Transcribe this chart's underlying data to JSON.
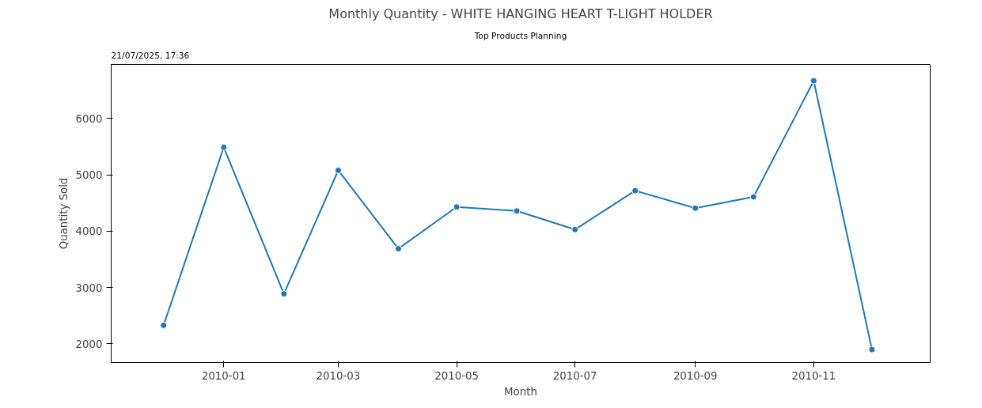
{
  "chart_data": {
    "type": "line",
    "title": "Monthly Quantity - WHITE HANGING HEART T-LIGHT HOLDER",
    "xlabel": "Month",
    "ylabel": "Quantity Sold",
    "annotations": [
      "21/07/2025, 17:36",
      "Top Products Planning"
    ],
    "x": [
      "2009-12",
      "2010-01",
      "2010-02",
      "2010-03",
      "2010-04",
      "2010-05",
      "2010-06",
      "2010-07",
      "2010-08",
      "2010-09",
      "2010-10",
      "2010-11",
      "2010-12"
    ],
    "series": [
      {
        "color": "#1f77b4",
        "values": [
          2330,
          5490,
          2890,
          5080,
          3690,
          4430,
          4360,
          4030,
          4720,
          4410,
          4610,
          6670,
          1900
        ]
      }
    ],
    "xlim": [
      "2009-11-04",
      "2010-12-31"
    ],
    "xticks": [
      "2010-01",
      "2010-03",
      "2010-05",
      "2010-07",
      "2010-09",
      "2010-11"
    ],
    "ylim": [
      1670,
      6960
    ],
    "yticks": [
      2000,
      3000,
      4000,
      5000,
      6000
    ],
    "grid": false,
    "marker": "circle",
    "line_style": "solid"
  }
}
